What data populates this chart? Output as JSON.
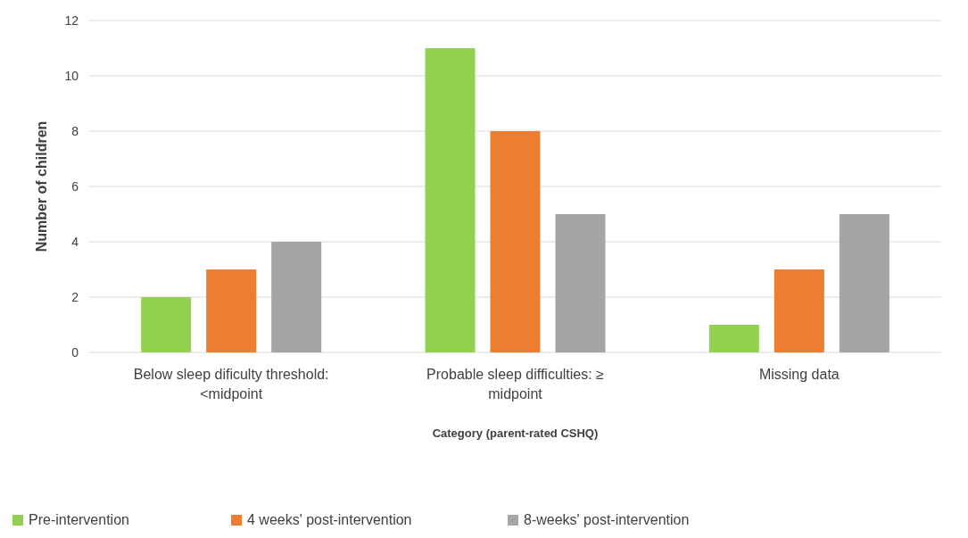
{
  "chart_data": {
    "type": "bar",
    "xlabel": "Category (parent-rated CSHQ)",
    "ylabel": "Number of children",
    "categories": [
      "Below sleep dificulty threshold: <midpoint",
      "Probable sleep difficulties: ≥ midpoint",
      "Missing data"
    ],
    "series": [
      {
        "name": "Pre-intervention",
        "color": "#92d050",
        "values": [
          2,
          11,
          1
        ]
      },
      {
        "name": "4 weeks' post-intervention",
        "color": "#ed7d31",
        "values": [
          3,
          8,
          3
        ]
      },
      {
        "name": "8-weeks' post-intervention",
        "color": "#a5a5a5",
        "values": [
          4,
          5,
          5
        ]
      }
    ],
    "ylim": [
      0,
      12
    ],
    "yticks": [
      0,
      2,
      4,
      6,
      8,
      10,
      12
    ],
    "grid": "y",
    "legend": "bottom"
  }
}
